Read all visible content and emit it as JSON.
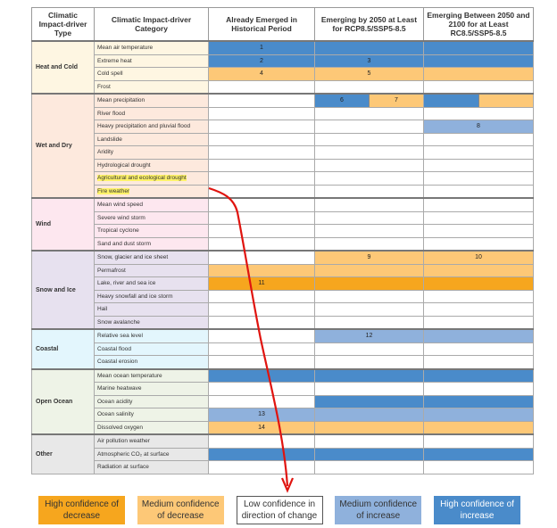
{
  "headers": [
    "Climatic Impact-driver Type",
    "Climatic Impact-driver Category",
    "Already Emerged in Historical Period",
    "Emerging by 2050 at Least for RCP8.5/SSP5-8.5",
    "Emerging Between 2050 and 2100 for at Least RC8.5/SSP5-8.5"
  ],
  "colors": {
    "hd": "#f6a61e",
    "md": "#fdc877",
    "lc": "#ffffff",
    "mi": "#8fb1dc",
    "hi": "#4a8bca"
  },
  "groups": [
    {
      "type": "Heat and Cold",
      "bg": "#fef6e2",
      "rows": [
        {
          "cat": "Mean air temperature",
          "cells": [
            [
              [
                "hi",
                "1"
              ]
            ],
            [
              [
                "hi",
                ""
              ]
            ],
            [
              [
                "hi",
                ""
              ]
            ]
          ]
        },
        {
          "cat": "Extreme heat",
          "cells": [
            [
              [
                "hi",
                "2"
              ]
            ],
            [
              [
                "hi",
                "3"
              ]
            ],
            [
              [
                "hi",
                ""
              ]
            ]
          ]
        },
        {
          "cat": "Cold spell",
          "cells": [
            [
              [
                "md",
                "4"
              ]
            ],
            [
              [
                "md",
                "5"
              ]
            ],
            [
              [
                "md",
                ""
              ]
            ]
          ]
        },
        {
          "cat": "Frost",
          "cells": [
            [
              [
                "lc",
                ""
              ]
            ],
            [
              [
                "lc",
                ""
              ]
            ],
            [
              [
                "lc",
                ""
              ]
            ]
          ]
        }
      ]
    },
    {
      "type": "Wet and Dry",
      "bg": "#fde9dd",
      "rows": [
        {
          "cat": "Mean precipitation",
          "cells": [
            [
              [
                "lc",
                ""
              ]
            ],
            [
              [
                "hi",
                "6"
              ],
              [
                "md",
                "7"
              ]
            ],
            [
              [
                "hi",
                ""
              ],
              [
                "md",
                ""
              ]
            ]
          ]
        },
        {
          "cat": "River flood",
          "cells": [
            [
              [
                "lc",
                ""
              ]
            ],
            [
              [
                "lc",
                ""
              ]
            ],
            [
              [
                "lc",
                ""
              ]
            ]
          ]
        },
        {
          "cat": "Heavy precipitation and pluvial flood",
          "cells": [
            [
              [
                "lc",
                ""
              ]
            ],
            [
              [
                "lc",
                ""
              ]
            ],
            [
              [
                "mi",
                "8"
              ]
            ]
          ]
        },
        {
          "cat": "Landslide",
          "cells": [
            [
              [
                "lc",
                ""
              ]
            ],
            [
              [
                "lc",
                ""
              ]
            ],
            [
              [
                "lc",
                ""
              ]
            ]
          ]
        },
        {
          "cat": "Aridity",
          "cells": [
            [
              [
                "lc",
                ""
              ]
            ],
            [
              [
                "lc",
                ""
              ]
            ],
            [
              [
                "lc",
                ""
              ]
            ]
          ]
        },
        {
          "cat": "Hydrological drought",
          "cells": [
            [
              [
                "lc",
                ""
              ]
            ],
            [
              [
                "lc",
                ""
              ]
            ],
            [
              [
                "lc",
                ""
              ]
            ]
          ]
        },
        {
          "cat": "Agricultural and ecological drought",
          "cells": [
            [
              [
                "lc",
                ""
              ]
            ],
            [
              [
                "lc",
                ""
              ]
            ],
            [
              [
                "lc",
                ""
              ]
            ]
          ],
          "highlight": true
        },
        {
          "cat": "Fire weather",
          "cells": [
            [
              [
                "lc",
                ""
              ]
            ],
            [
              [
                "lc",
                ""
              ]
            ],
            [
              [
                "lc",
                ""
              ]
            ]
          ],
          "highlight": true
        }
      ]
    },
    {
      "type": "Wind",
      "bg": "#fde7ef",
      "rows": [
        {
          "cat": "Mean wind speed",
          "cells": [
            [
              [
                "lc",
                ""
              ]
            ],
            [
              [
                "lc",
                ""
              ]
            ],
            [
              [
                "lc",
                ""
              ]
            ]
          ]
        },
        {
          "cat": "Severe wind storm",
          "cells": [
            [
              [
                "lc",
                ""
              ]
            ],
            [
              [
                "lc",
                ""
              ]
            ],
            [
              [
                "lc",
                ""
              ]
            ]
          ]
        },
        {
          "cat": "Tropical cyclone",
          "cells": [
            [
              [
                "lc",
                ""
              ]
            ],
            [
              [
                "lc",
                ""
              ]
            ],
            [
              [
                "lc",
                ""
              ]
            ]
          ]
        },
        {
          "cat": "Sand and dust storm",
          "cells": [
            [
              [
                "lc",
                ""
              ]
            ],
            [
              [
                "lc",
                ""
              ]
            ],
            [
              [
                "lc",
                ""
              ]
            ]
          ]
        }
      ]
    },
    {
      "type": "Snow and Ice",
      "bg": "#e7e1ef",
      "rows": [
        {
          "cat": "Snow, glacier and ice sheet",
          "cells": [
            [
              [
                "lc",
                ""
              ]
            ],
            [
              [
                "md",
                "9"
              ]
            ],
            [
              [
                "md",
                "10"
              ]
            ]
          ]
        },
        {
          "cat": "Permafrost",
          "cells": [
            [
              [
                "md",
                ""
              ]
            ],
            [
              [
                "md",
                ""
              ]
            ],
            [
              [
                "md",
                ""
              ]
            ]
          ]
        },
        {
          "cat": "Lake, river and sea ice",
          "cells": [
            [
              [
                "hd",
                "11"
              ]
            ],
            [
              [
                "hd",
                ""
              ]
            ],
            [
              [
                "hd",
                ""
              ]
            ]
          ]
        },
        {
          "cat": "Heavy snowfall and ice storm",
          "cells": [
            [
              [
                "lc",
                ""
              ]
            ],
            [
              [
                "lc",
                ""
              ]
            ],
            [
              [
                "lc",
                ""
              ]
            ]
          ]
        },
        {
          "cat": "Hail",
          "cells": [
            [
              [
                "lc",
                ""
              ]
            ],
            [
              [
                "lc",
                ""
              ]
            ],
            [
              [
                "lc",
                ""
              ]
            ]
          ]
        },
        {
          "cat": "Snow avalanche",
          "cells": [
            [
              [
                "lc",
                ""
              ]
            ],
            [
              [
                "lc",
                ""
              ]
            ],
            [
              [
                "lc",
                ""
              ]
            ]
          ]
        }
      ]
    },
    {
      "type": "Coastal",
      "bg": "#e3f6fd",
      "rows": [
        {
          "cat": "Relative sea level",
          "cells": [
            [
              [
                "lc",
                ""
              ]
            ],
            [
              [
                "mi",
                "12"
              ]
            ],
            [
              [
                "mi",
                ""
              ]
            ]
          ]
        },
        {
          "cat": "Coastal flood",
          "cells": [
            [
              [
                "lc",
                ""
              ]
            ],
            [
              [
                "lc",
                ""
              ]
            ],
            [
              [
                "lc",
                ""
              ]
            ]
          ]
        },
        {
          "cat": "Coastal erosion",
          "cells": [
            [
              [
                "lc",
                ""
              ]
            ],
            [
              [
                "lc",
                ""
              ]
            ],
            [
              [
                "lc",
                ""
              ]
            ]
          ]
        }
      ]
    },
    {
      "type": "Open Ocean",
      "bg": "#eef3e7",
      "rows": [
        {
          "cat": "Mean ocean temperature",
          "cells": [
            [
              [
                "hi",
                ""
              ]
            ],
            [
              [
                "hi",
                ""
              ]
            ],
            [
              [
                "hi",
                ""
              ]
            ]
          ]
        },
        {
          "cat": "Marine heatwave",
          "cells": [
            [
              [
                "lc",
                ""
              ]
            ],
            [
              [
                "lc",
                ""
              ]
            ],
            [
              [
                "lc",
                ""
              ]
            ]
          ]
        },
        {
          "cat": "Ocean acidity",
          "cells": [
            [
              [
                "lc",
                ""
              ]
            ],
            [
              [
                "hi",
                ""
              ]
            ],
            [
              [
                "hi",
                ""
              ]
            ]
          ]
        },
        {
          "cat": "Ocean salinity",
          "cells": [
            [
              [
                "mi",
                "13"
              ]
            ],
            [
              [
                "mi",
                ""
              ]
            ],
            [
              [
                "mi",
                ""
              ]
            ]
          ]
        },
        {
          "cat": "Dissolved oxygen",
          "cells": [
            [
              [
                "md",
                "14"
              ]
            ],
            [
              [
                "md",
                ""
              ]
            ],
            [
              [
                "md",
                ""
              ]
            ]
          ]
        }
      ]
    },
    {
      "type": "Other",
      "bg": "#e8e8e8",
      "rows": [
        {
          "cat": "Air pollution weather",
          "cells": [
            [
              [
                "lc",
                ""
              ]
            ],
            [
              [
                "lc",
                ""
              ]
            ],
            [
              [
                "lc",
                ""
              ]
            ]
          ]
        },
        {
          "cat": "Atmospheric CO₂ at surface",
          "cells": [
            [
              [
                "hi",
                ""
              ]
            ],
            [
              [
                "hi",
                ""
              ]
            ],
            [
              [
                "hi",
                ""
              ]
            ]
          ]
        },
        {
          "cat": "Radiation at surface",
          "cells": [
            [
              [
                "lc",
                ""
              ]
            ],
            [
              [
                "lc",
                ""
              ]
            ],
            [
              [
                "lc",
                ""
              ]
            ]
          ]
        }
      ]
    }
  ],
  "legend": [
    {
      "key": "hd",
      "label": "High confidence of decrease"
    },
    {
      "key": "md",
      "label": "Medium confidence of decrease"
    },
    {
      "key": "lc",
      "label": "Low confidence in direction of change"
    },
    {
      "key": "mi",
      "label": "Medium confidence of increase"
    },
    {
      "key": "hi",
      "label": "High confidence of increase"
    }
  ],
  "annotation_color": "#e0140f"
}
